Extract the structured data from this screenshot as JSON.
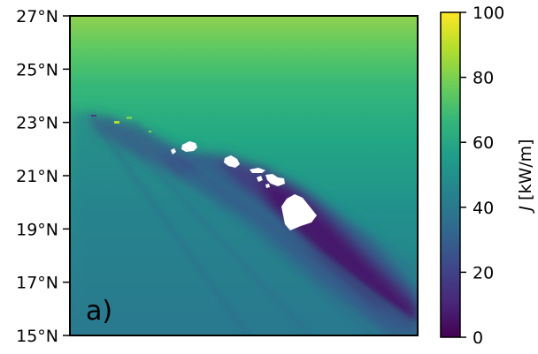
{
  "chart_data": {
    "type": "heatmap",
    "panel_label": "a)",
    "y_axis": {
      "ticks": [
        {
          "value": 15,
          "label": "15°N"
        },
        {
          "value": 17,
          "label": "17°N"
        },
        {
          "value": 19,
          "label": "19°N"
        },
        {
          "value": 21,
          "label": "21°N"
        },
        {
          "value": 23,
          "label": "23°N"
        },
        {
          "value": 25,
          "label": "25°N"
        },
        {
          "value": 27,
          "label": "27°N"
        }
      ],
      "range": [
        15,
        27
      ]
    },
    "colorbar": {
      "label_italic": "J",
      "label_rest": " [kW/m]",
      "range": [
        0,
        100
      ],
      "ticks": [
        {
          "value": 0,
          "label": "0"
        },
        {
          "value": 20,
          "label": "20"
        },
        {
          "value": 40,
          "label": "40"
        },
        {
          "value": 60,
          "label": "60"
        },
        {
          "value": 80,
          "label": "80"
        },
        {
          "value": 100,
          "label": "100"
        }
      ],
      "colormap": "viridis"
    },
    "field_summary": {
      "north_value": 85,
      "mid_value": 60,
      "south_value": 45,
      "shadow_value": 10
    }
  },
  "colors": {
    "viridis": [
      "#440154",
      "#482878",
      "#3e4989",
      "#31688e",
      "#26828e",
      "#1f9e89",
      "#35b779",
      "#6ece58",
      "#b5de2b",
      "#fde725"
    ],
    "land": "#ffffff",
    "frame": "#000000"
  }
}
